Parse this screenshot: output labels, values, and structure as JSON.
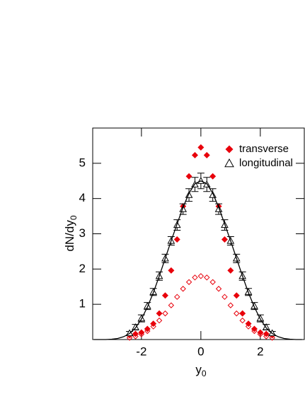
{
  "chart_data": {
    "type": "scatter",
    "xlabel": {
      "text": "y",
      "sub": "0"
    },
    "ylabel": {
      "text": "dN/dy",
      "sub": "0"
    },
    "xlim": [
      -3.64,
      3.48
    ],
    "ylim": [
      0,
      6
    ],
    "xticks": [
      -2,
      0,
      2
    ],
    "yticks": [
      1,
      2,
      3,
      4,
      5
    ],
    "legend": "upper right",
    "series": [
      {
        "name": "transverse",
        "color": "#e8000b",
        "marker": "filled-diamond",
        "x": [
          -2.4,
          -2.2,
          -2.0,
          -1.8,
          -1.6,
          -1.4,
          -1.2,
          -1.0,
          -0.8,
          -0.6,
          -0.4,
          -0.2,
          0,
          0.2,
          0.4,
          0.6,
          0.8,
          1.0,
          1.2,
          1.4,
          1.6,
          1.8,
          2.0,
          2.2,
          2.4
        ],
        "values": [
          0.12,
          0.16,
          0.2,
          0.3,
          0.45,
          0.74,
          1.25,
          1.96,
          2.84,
          3.78,
          4.63,
          5.23,
          5.45,
          5.23,
          4.63,
          3.78,
          2.84,
          1.96,
          1.25,
          0.74,
          0.45,
          0.3,
          0.2,
          0.16,
          0.12
        ]
      },
      {
        "color": "#e8000b",
        "marker": "open-diamond",
        "x": [
          -2.4,
          -2.2,
          -2.0,
          -1.8,
          -1.6,
          -1.4,
          -1.2,
          -1.0,
          -0.8,
          -0.6,
          -0.4,
          -0.2,
          0,
          0.2,
          0.4,
          0.6,
          0.8,
          1.0,
          1.2,
          1.4,
          1.6,
          1.8,
          2.0,
          2.2,
          2.4
        ],
        "values": [
          0.05,
          0.09,
          0.15,
          0.24,
          0.37,
          0.54,
          0.74,
          0.97,
          1.21,
          1.44,
          1.63,
          1.76,
          1.8,
          1.76,
          1.63,
          1.44,
          1.21,
          0.97,
          0.74,
          0.54,
          0.37,
          0.24,
          0.15,
          0.09,
          0.05
        ]
      },
      {
        "name": "longitudinal",
        "color": "#000000",
        "marker": "open-triangle",
        "x": [
          -2.4,
          -2.2,
          -2.0,
          -1.8,
          -1.6,
          -1.4,
          -1.2,
          -1.0,
          -0.8,
          -0.6,
          -0.4,
          -0.2,
          0,
          0.2,
          0.4,
          0.6,
          0.8,
          1.0,
          1.2,
          1.4,
          1.6,
          1.8,
          2.0,
          2.2,
          2.4
        ],
        "values": [
          0.18,
          0.35,
          0.6,
          0.95,
          1.35,
          1.8,
          2.3,
          2.8,
          3.25,
          3.7,
          4.1,
          4.4,
          4.5,
          4.4,
          4.1,
          3.7,
          3.25,
          2.8,
          2.3,
          1.8,
          1.35,
          0.95,
          0.6,
          0.35,
          0.18
        ],
        "errors": [
          0.05,
          0.08,
          0.1,
          0.1,
          0.1,
          0.12,
          0.12,
          0.12,
          0.15,
          0.15,
          0.18,
          0.2,
          0.22,
          0.2,
          0.18,
          0.15,
          0.15,
          0.12,
          0.12,
          0.12,
          0.1,
          0.1,
          0.1,
          0.08,
          0.05
        ]
      },
      {
        "color": "#000000",
        "marker": "line",
        "x": [
          -3.6,
          -3.4,
          -3.2,
          -3.0,
          -2.8,
          -2.6,
          -2.4,
          -2.2,
          -2.0,
          -1.8,
          -1.6,
          -1.4,
          -1.2,
          -1.0,
          -0.8,
          -0.6,
          -0.4,
          -0.2,
          0,
          0.2,
          0.4,
          0.6,
          0.8,
          1.0,
          1.2,
          1.4,
          1.6,
          1.8,
          2.0,
          2.2,
          2.4,
          2.6,
          2.8,
          3.0,
          3.2,
          3.4
        ],
        "values": [
          0,
          0,
          0,
          0.01,
          0.03,
          0.08,
          0.17,
          0.33,
          0.58,
          0.92,
          1.33,
          1.8,
          2.3,
          2.8,
          3.28,
          3.75,
          4.15,
          4.42,
          4.5,
          4.42,
          4.15,
          3.75,
          3.28,
          2.8,
          2.3,
          1.8,
          1.33,
          0.92,
          0.58,
          0.33,
          0.17,
          0.08,
          0.03,
          0.01,
          0,
          0
        ]
      }
    ]
  }
}
